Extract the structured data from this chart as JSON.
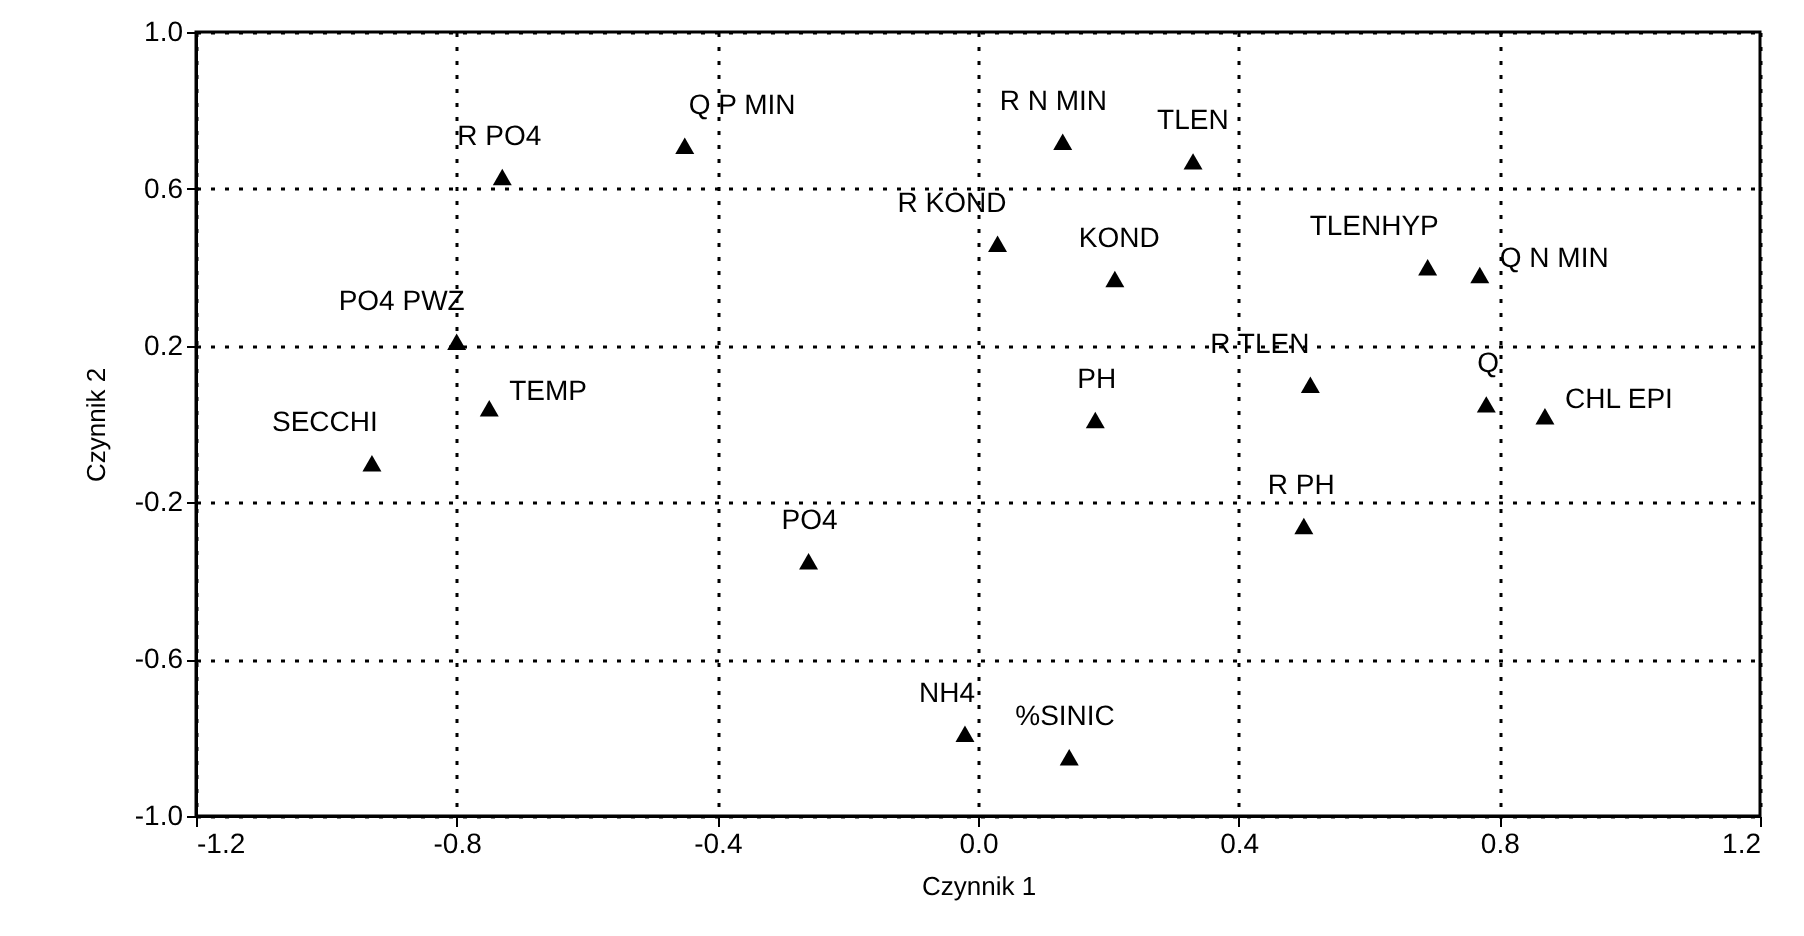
{
  "chart_data": {
    "type": "scatter",
    "xlabel": "Czynnik 1",
    "ylabel": "Czynnik 2",
    "xlim": [
      -1.2,
      1.2
    ],
    "ylim": [
      -1.0,
      1.0
    ],
    "xticks": [
      {
        "value": -1.2,
        "label": "-1.2"
      },
      {
        "value": -0.8,
        "label": "-0.8"
      },
      {
        "value": -0.4,
        "label": "-0.4"
      },
      {
        "value": 0.0,
        "label": "0.0"
      },
      {
        "value": 0.4,
        "label": "0.4"
      },
      {
        "value": 0.8,
        "label": "0.8"
      },
      {
        "value": 1.2,
        "label": "1.2"
      }
    ],
    "yticks": [
      {
        "value": -1.0,
        "label": "-1.0"
      },
      {
        "value": -0.6,
        "label": "-0.6"
      },
      {
        "value": -0.2,
        "label": "-0.2"
      },
      {
        "value": 0.2,
        "label": "0.2"
      },
      {
        "value": 0.6,
        "label": "0.6"
      },
      {
        "value": 1.0,
        "label": "1.0"
      }
    ],
    "grid": true,
    "marker": "triangle",
    "series": [
      {
        "name": "R PO4",
        "color": "#000000",
        "x": [
          -0.73
        ],
        "values": [
          0.63
        ]
      },
      {
        "name": "Q P MIN",
        "color": "#000000",
        "x": [
          -0.45
        ],
        "values": [
          0.71
        ]
      },
      {
        "name": "R N MIN",
        "color": "#000000",
        "x": [
          0.13
        ],
        "values": [
          0.72
        ]
      },
      {
        "name": "TLEN",
        "color": "#000000",
        "x": [
          0.33
        ],
        "values": [
          0.67
        ]
      },
      {
        "name": "R KOND",
        "color": "#000000",
        "x": [
          0.03
        ],
        "values": [
          0.46
        ]
      },
      {
        "name": "KOND",
        "color": "#000000",
        "x": [
          0.21
        ],
        "values": [
          0.37
        ]
      },
      {
        "name": "TLENHYP",
        "color": "#000000",
        "x": [
          0.69
        ],
        "values": [
          0.4
        ]
      },
      {
        "name": "Q N MIN",
        "color": "#000000",
        "x": [
          0.77
        ],
        "values": [
          0.38
        ]
      },
      {
        "name": "PO4 PWZ",
        "color": "#000000",
        "x": [
          -0.8
        ],
        "values": [
          0.21
        ]
      },
      {
        "name": "TEMP",
        "color": "#000000",
        "x": [
          -0.75
        ],
        "values": [
          0.04
        ]
      },
      {
        "name": "SECCHI",
        "color": "#000000",
        "x": [
          -0.93
        ],
        "values": [
          -0.1
        ]
      },
      {
        "name": "R TLEN",
        "color": "#000000",
        "x": [
          0.51
        ],
        "values": [
          0.1
        ]
      },
      {
        "name": "Q",
        "color": "#000000",
        "x": [
          0.78
        ],
        "values": [
          0.05
        ]
      },
      {
        "name": "CHL EPI",
        "color": "#000000",
        "x": [
          0.87
        ],
        "values": [
          0.02
        ]
      },
      {
        "name": "PH",
        "color": "#000000",
        "x": [
          0.18
        ],
        "values": [
          0.01
        ]
      },
      {
        "name": "R PH",
        "color": "#000000",
        "x": [
          0.5
        ],
        "values": [
          -0.26
        ]
      },
      {
        "name": "PO4",
        "color": "#000000",
        "x": [
          -0.26
        ],
        "values": [
          -0.35
        ]
      },
      {
        "name": "NH4",
        "color": "#000000",
        "x": [
          -0.02
        ],
        "values": [
          -0.79
        ]
      },
      {
        "name": "%SINIC",
        "color": "#000000",
        "x": [
          0.14
        ],
        "values": [
          -0.85
        ]
      }
    ]
  }
}
